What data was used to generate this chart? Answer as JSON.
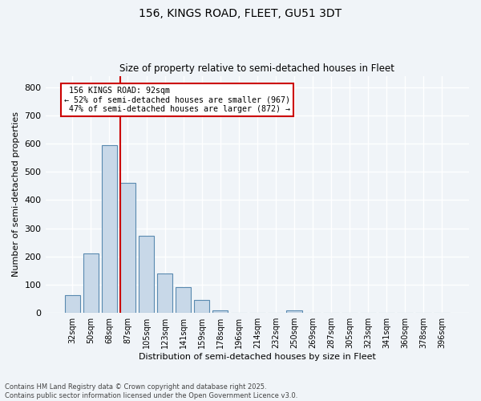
{
  "title1": "156, KINGS ROAD, FLEET, GU51 3DT",
  "title2": "Size of property relative to semi-detached houses in Fleet",
  "xlabel": "Distribution of semi-detached houses by size in Fleet",
  "ylabel": "Number of semi-detached properties",
  "categories": [
    "32sqm",
    "50sqm",
    "68sqm",
    "87sqm",
    "105sqm",
    "123sqm",
    "141sqm",
    "159sqm",
    "178sqm",
    "196sqm",
    "214sqm",
    "232sqm",
    "250sqm",
    "269sqm",
    "287sqm",
    "305sqm",
    "323sqm",
    "341sqm",
    "360sqm",
    "378sqm",
    "396sqm"
  ],
  "values": [
    62,
    210,
    595,
    462,
    272,
    140,
    92,
    47,
    8,
    0,
    0,
    0,
    8,
    0,
    0,
    0,
    0,
    0,
    0,
    0,
    0
  ],
  "bar_color": "#c8d8e8",
  "bar_edge_color": "#5a8ab0",
  "property_bin_index": 3,
  "property_line_label": "156 KINGS ROAD: 92sqm",
  "smaller_pct": "52%",
  "smaller_count": 967,
  "larger_pct": "47%",
  "larger_count": 872,
  "annotation_box_color": "#cc0000",
  "vline_color": "#cc0000",
  "ylim": [
    0,
    840
  ],
  "yticks": [
    0,
    100,
    200,
    300,
    400,
    500,
    600,
    700,
    800
  ],
  "footer": "Contains HM Land Registry data © Crown copyright and database right 2025.\nContains public sector information licensed under the Open Government Licence v3.0.",
  "bg_color": "#f0f4f8",
  "grid_color": "#ffffff"
}
